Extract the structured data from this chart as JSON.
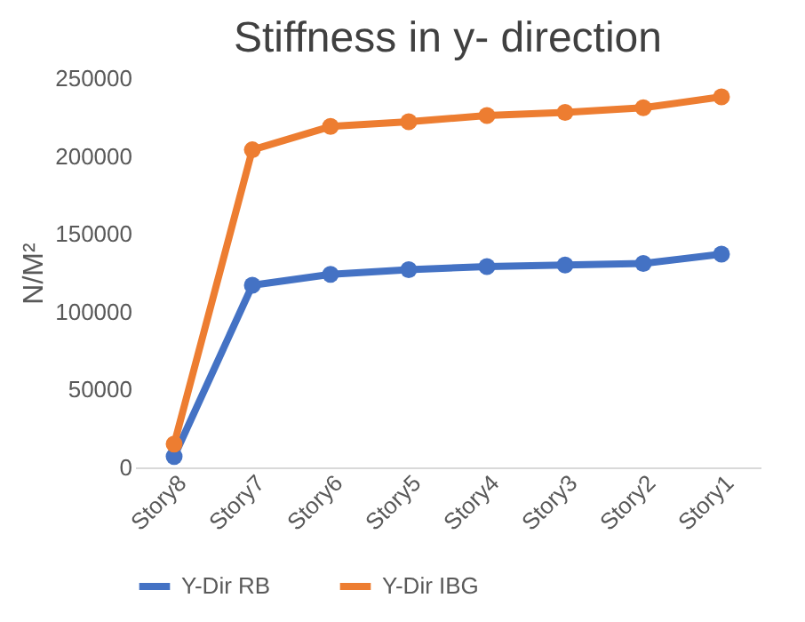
{
  "chart_data": {
    "type": "line",
    "title": "Stiffness in y- direction",
    "ylabel": "N/M²",
    "categories": [
      "Story8",
      "Story7",
      "Story6",
      "Story5",
      "Story4",
      "Story3",
      "Story2",
      "Story1"
    ],
    "series": [
      {
        "name": "Y-Dir RB",
        "color": "#4472c4",
        "values": [
          7000,
          117000,
          124000,
          127000,
          129000,
          130000,
          131000,
          137000
        ]
      },
      {
        "name": "Y-Dir IBG",
        "color": "#ed7d31",
        "values": [
          15000,
          204000,
          219000,
          222000,
          226000,
          228000,
          231000,
          238000
        ]
      }
    ],
    "ylim": [
      0,
      250000
    ],
    "yticks": [
      0,
      50000,
      100000,
      150000,
      200000,
      250000
    ],
    "grid": false,
    "legend": "bottom",
    "marker": "circle",
    "line_style": "solid"
  }
}
